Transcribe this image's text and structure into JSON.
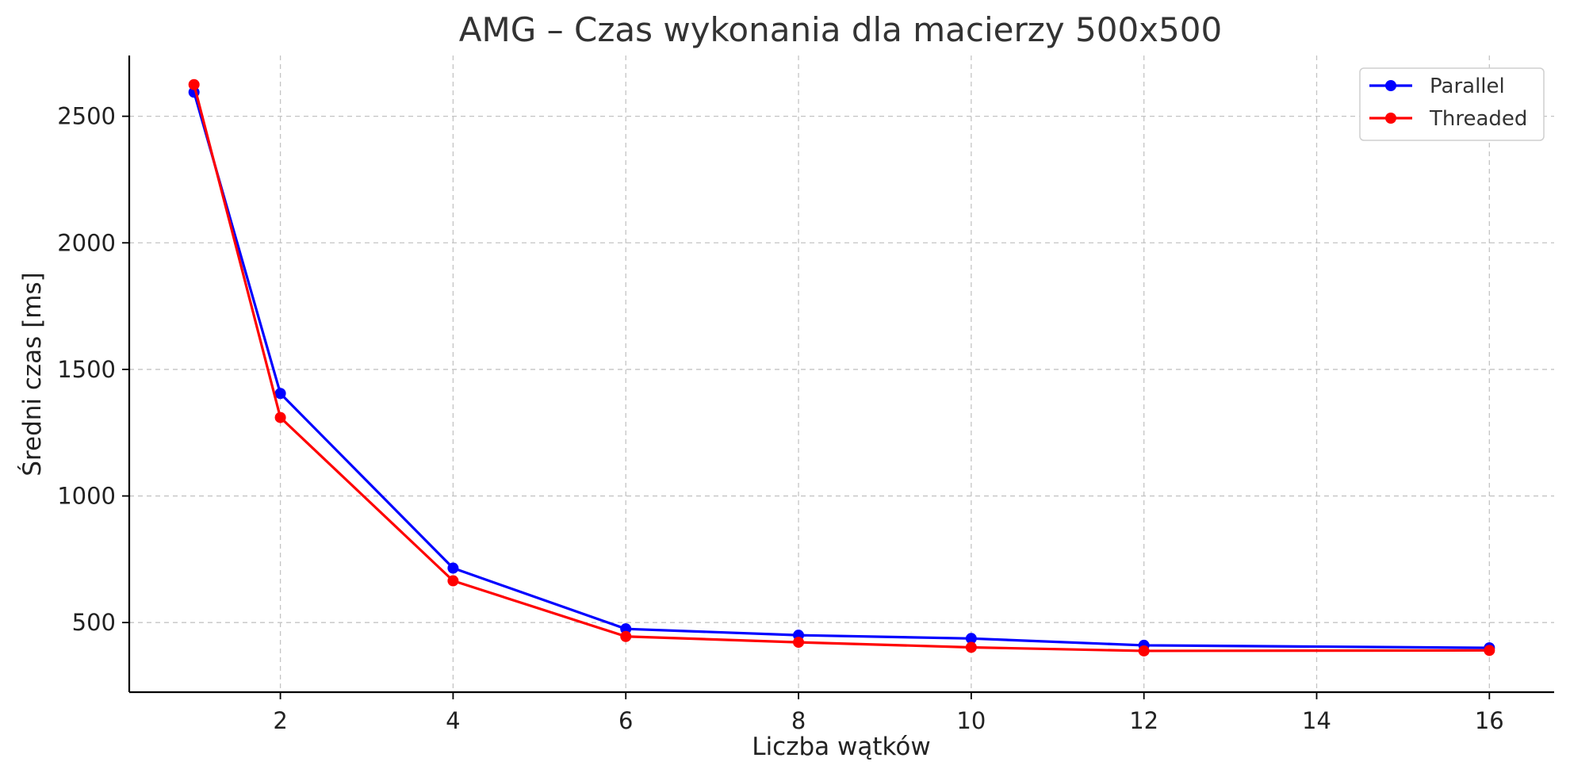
{
  "chart_data": {
    "type": "line",
    "title": "AMG – Czas wykonania dla macierzy 500x500",
    "xlabel": "Liczba wątków",
    "ylabel": "Średni czas [ms]",
    "x": [
      1,
      2,
      4,
      6,
      8,
      10,
      12,
      16
    ],
    "xlim": [
      0.25,
      16.75
    ],
    "ylim": [
      225,
      2740
    ],
    "xticks": [
      2,
      4,
      6,
      8,
      10,
      12,
      14,
      16
    ],
    "yticks": [
      500,
      1000,
      1500,
      2000,
      2500
    ],
    "grid": true,
    "legend_position": "top-right",
    "series": [
      {
        "name": "Parallel",
        "color": "#0000ff",
        "values": [
          2595,
          1405,
          715,
          475,
          450,
          437,
          410,
          400
        ]
      },
      {
        "name": "Threaded",
        "color": "#ff0000",
        "values": [
          2625,
          1310,
          665,
          445,
          422,
          402,
          388,
          390
        ]
      }
    ]
  }
}
